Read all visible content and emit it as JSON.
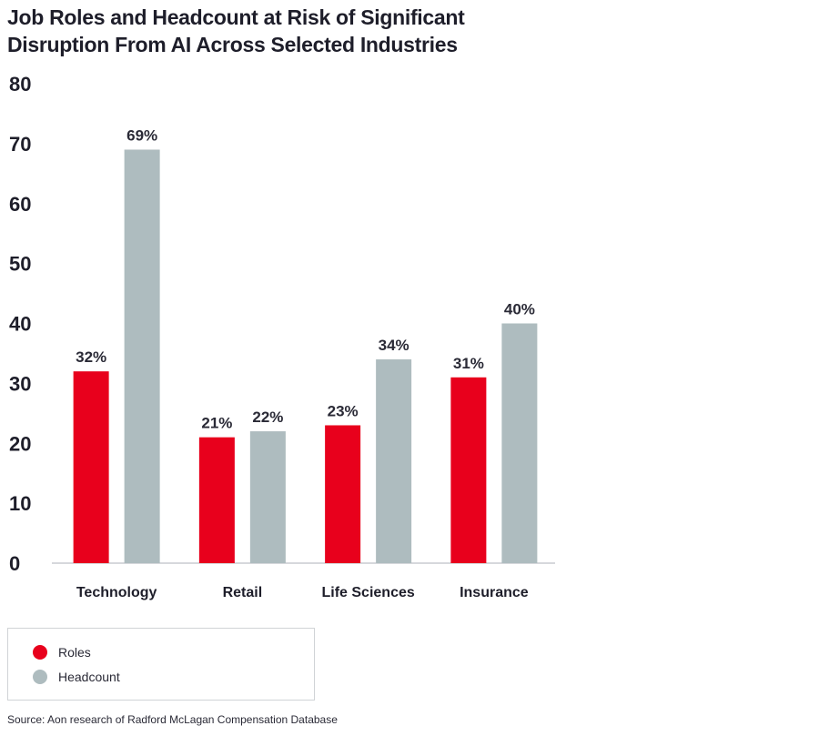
{
  "chart_data": {
    "type": "bar",
    "title_lines": [
      "Job Roles and Headcount at Risk of Significant",
      "Disruption From AI Across Selected Industries"
    ],
    "categories": [
      "Technology",
      "Retail",
      "Life Sciences",
      "Insurance"
    ],
    "series": [
      {
        "name": "Roles",
        "values": [
          32,
          21,
          23,
          31
        ],
        "labels": [
          "32%",
          "21%",
          "23%",
          "31%"
        ],
        "color": "#e8001c"
      },
      {
        "name": "Headcount",
        "values": [
          69,
          22,
          34,
          40
        ],
        "labels": [
          "69%",
          "22%",
          "34%",
          "40%"
        ],
        "color": "#aebcbf"
      }
    ],
    "y_ticks": [
      "0",
      "10",
      "20",
      "30",
      "40",
      "50",
      "60",
      "70",
      "80"
    ],
    "ylim": [
      0,
      80
    ],
    "grid": false,
    "legend_position": "bottom-left",
    "source": "Source: Aon research of Radford McLagan Compensation Database"
  }
}
